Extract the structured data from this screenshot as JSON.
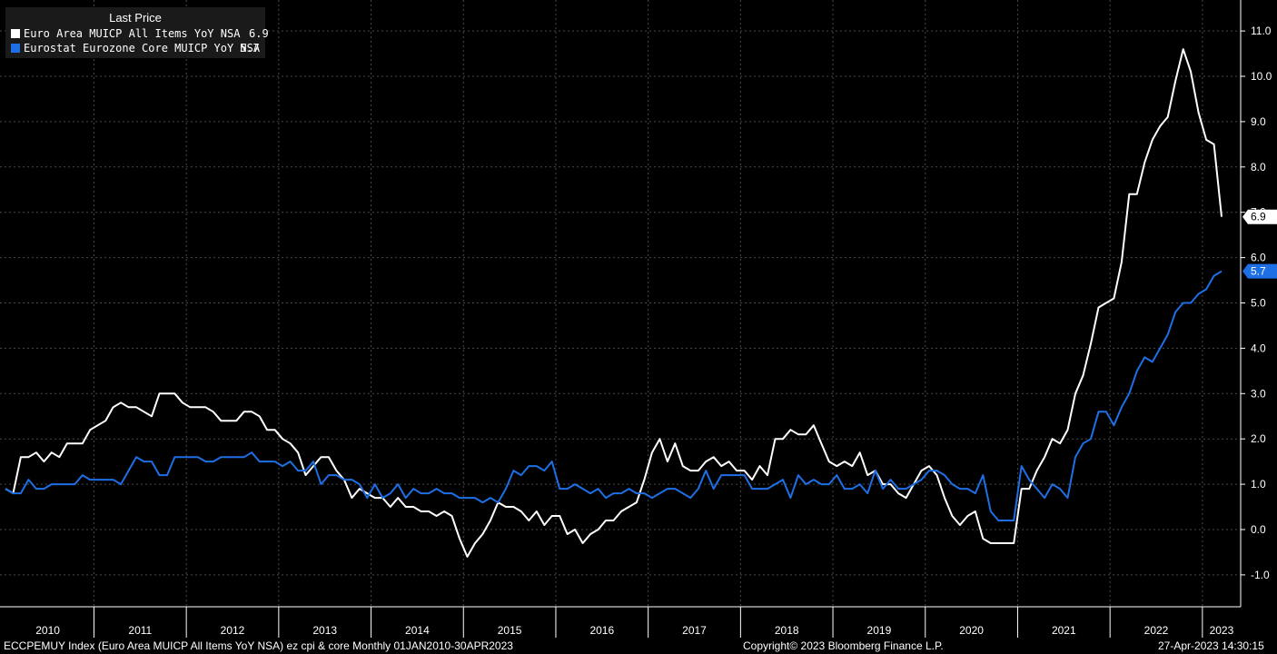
{
  "legend": {
    "title": "Last Price",
    "items": [
      {
        "label": "Euro Area MUICP All Items YoY NSA",
        "value": "6.9",
        "color": "#ffffff"
      },
      {
        "label": "Eurostat Eurozone Core MUICP YoY NSA",
        "value": "5.7",
        "color": "#1e6fe6"
      }
    ]
  },
  "footer": {
    "left": "ECCPEMUY Index (Euro Area MUICP All Items YoY NSA) ez cpi & core  Monthly 01JAN2010-30APR2023",
    "center": "Copyright© 2023 Bloomberg Finance L.P.",
    "right": "27-Apr-2023 14:30:15"
  },
  "chart_data": {
    "type": "line",
    "x_start": "2010-01",
    "x_end": "2023-03",
    "frequency": "monthly",
    "ylim": [
      -1.5,
      11.5
    ],
    "y_ticks": [
      "11.0",
      "10.0",
      "9.0",
      "8.0",
      "7.0",
      "6.0",
      "5.0",
      "4.0",
      "3.0",
      "2.0",
      "1.0",
      "0.0",
      "-1.0"
    ],
    "x_tick_labels": [
      "2010",
      "2011",
      "2012",
      "2013",
      "2014",
      "2015",
      "2016",
      "2017",
      "2018",
      "2019",
      "2020",
      "2021",
      "2022",
      "2023"
    ],
    "grid": true,
    "last_labels": {
      "headline": "6.9",
      "core": "5.7"
    },
    "series": [
      {
        "key": "headline",
        "color": "#ffffff",
        "values": [
          0.9,
          0.8,
          1.6,
          1.6,
          1.7,
          1.5,
          1.7,
          1.6,
          1.9,
          1.9,
          1.9,
          2.2,
          2.3,
          2.4,
          2.7,
          2.8,
          2.7,
          2.7,
          2.6,
          2.5,
          3.0,
          3.0,
          3.0,
          2.8,
          2.7,
          2.7,
          2.7,
          2.6,
          2.4,
          2.4,
          2.4,
          2.6,
          2.6,
          2.5,
          2.2,
          2.2,
          2.0,
          1.9,
          1.7,
          1.2,
          1.4,
          1.6,
          1.6,
          1.3,
          1.1,
          0.7,
          0.9,
          0.8,
          0.7,
          0.7,
          0.5,
          0.7,
          0.5,
          0.5,
          0.4,
          0.4,
          0.3,
          0.4,
          0.3,
          -0.2,
          -0.6,
          -0.3,
          -0.1,
          0.2,
          0.6,
          0.5,
          0.5,
          0.4,
          0.2,
          0.4,
          0.1,
          0.3,
          0.3,
          -0.1,
          0.0,
          -0.3,
          -0.1,
          0.0,
          0.2,
          0.2,
          0.4,
          0.5,
          0.6,
          1.1,
          1.7,
          2.0,
          1.5,
          1.9,
          1.4,
          1.3,
          1.3,
          1.5,
          1.6,
          1.4,
          1.5,
          1.3,
          1.3,
          1.1,
          1.4,
          1.2,
          2.0,
          2.0,
          2.2,
          2.1,
          2.1,
          2.3,
          1.9,
          1.5,
          1.4,
          1.5,
          1.4,
          1.7,
          1.2,
          1.3,
          1.0,
          1.0,
          0.8,
          0.7,
          1.0,
          1.3,
          1.4,
          1.2,
          0.7,
          0.3,
          0.1,
          0.3,
          0.4,
          -0.2,
          -0.3,
          -0.3,
          -0.3,
          -0.3,
          0.9,
          0.9,
          1.3,
          1.6,
          2.0,
          1.9,
          2.2,
          3.0,
          3.4,
          4.1,
          4.9,
          5.0,
          5.1,
          5.9,
          7.4,
          7.4,
          8.1,
          8.6,
          8.9,
          9.1,
          9.9,
          10.6,
          10.1,
          9.2,
          8.6,
          8.5,
          6.9
        ]
      },
      {
        "key": "core",
        "color": "#1e6fe6",
        "values": [
          0.9,
          0.8,
          0.8,
          1.1,
          0.9,
          0.9,
          1.0,
          1.0,
          1.0,
          1.0,
          1.2,
          1.1,
          1.1,
          1.1,
          1.1,
          1.0,
          1.3,
          1.6,
          1.5,
          1.5,
          1.2,
          1.2,
          1.6,
          1.6,
          1.6,
          1.6,
          1.5,
          1.5,
          1.6,
          1.6,
          1.6,
          1.6,
          1.7,
          1.5,
          1.5,
          1.5,
          1.4,
          1.5,
          1.3,
          1.3,
          1.5,
          1.0,
          1.2,
          1.2,
          1.1,
          1.1,
          1.0,
          0.7,
          1.0,
          0.7,
          0.8,
          1.0,
          0.7,
          0.9,
          0.8,
          0.8,
          0.9,
          0.8,
          0.8,
          0.7,
          0.7,
          0.7,
          0.6,
          0.7,
          0.6,
          0.9,
          1.3,
          1.2,
          1.4,
          1.4,
          1.3,
          1.5,
          0.9,
          0.9,
          1.0,
          0.9,
          0.8,
          0.9,
          0.7,
          0.8,
          0.8,
          0.9,
          0.8,
          0.8,
          0.7,
          0.8,
          0.9,
          0.9,
          0.8,
          0.7,
          0.9,
          1.3,
          0.9,
          1.2,
          1.2,
          1.2,
          1.2,
          0.9,
          0.9,
          0.9,
          1.0,
          1.1,
          0.7,
          1.2,
          1.0,
          1.1,
          1.0,
          1.0,
          1.2,
          0.9,
          0.9,
          1.0,
          0.8,
          1.3,
          0.9,
          1.1,
          0.9,
          0.9,
          1.0,
          1.1,
          1.3,
          1.3,
          1.2,
          1.0,
          0.9,
          0.9,
          0.8,
          1.2,
          0.4,
          0.2,
          0.2,
          0.2,
          1.4,
          1.1,
          0.9,
          0.7,
          1.0,
          0.9,
          0.7,
          1.6,
          1.9,
          2.0,
          2.6,
          2.6,
          2.3,
          2.7,
          3.0,
          3.5,
          3.8,
          3.7,
          4.0,
          4.3,
          4.8,
          5.0,
          5.0,
          5.2,
          5.3,
          5.6,
          5.7
        ]
      }
    ]
  }
}
